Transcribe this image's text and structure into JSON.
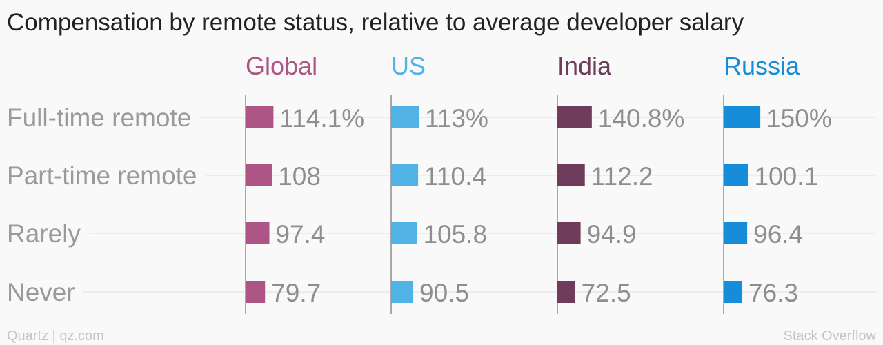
{
  "chart_data": {
    "type": "bar",
    "title": "Compensation by remote status, relative to average developer salary",
    "categories": [
      "Full-time remote",
      "Part-time remote",
      "Rarely",
      "Never"
    ],
    "series": [
      {
        "name": "Global",
        "color": "#ad5585",
        "values": [
          114.1,
          108,
          97.4,
          79.7
        ],
        "labels": [
          "114.1%",
          "108",
          "97.4",
          "79.7"
        ]
      },
      {
        "name": "US",
        "color": "#51b2e5",
        "values": [
          113,
          110.4,
          105.8,
          90.5
        ],
        "labels": [
          "113%",
          "110.4",
          "105.8",
          "90.5"
        ]
      },
      {
        "name": "India",
        "color": "#703c5c",
        "values": [
          140.8,
          112.2,
          94.9,
          72.5
        ],
        "labels": [
          "140.8%",
          "112.2",
          "94.9",
          "72.5"
        ]
      },
      {
        "name": "Russia",
        "color": "#168dd9",
        "values": [
          150,
          100.1,
          96.4,
          76.3
        ],
        "labels": [
          "150%",
          "100.1",
          "96.4",
          "76.3"
        ]
      }
    ],
    "orientation": "horizontal",
    "grid": true
  },
  "footer": {
    "credit": "Quartz | qz.com",
    "source": "Stack Overflow"
  }
}
